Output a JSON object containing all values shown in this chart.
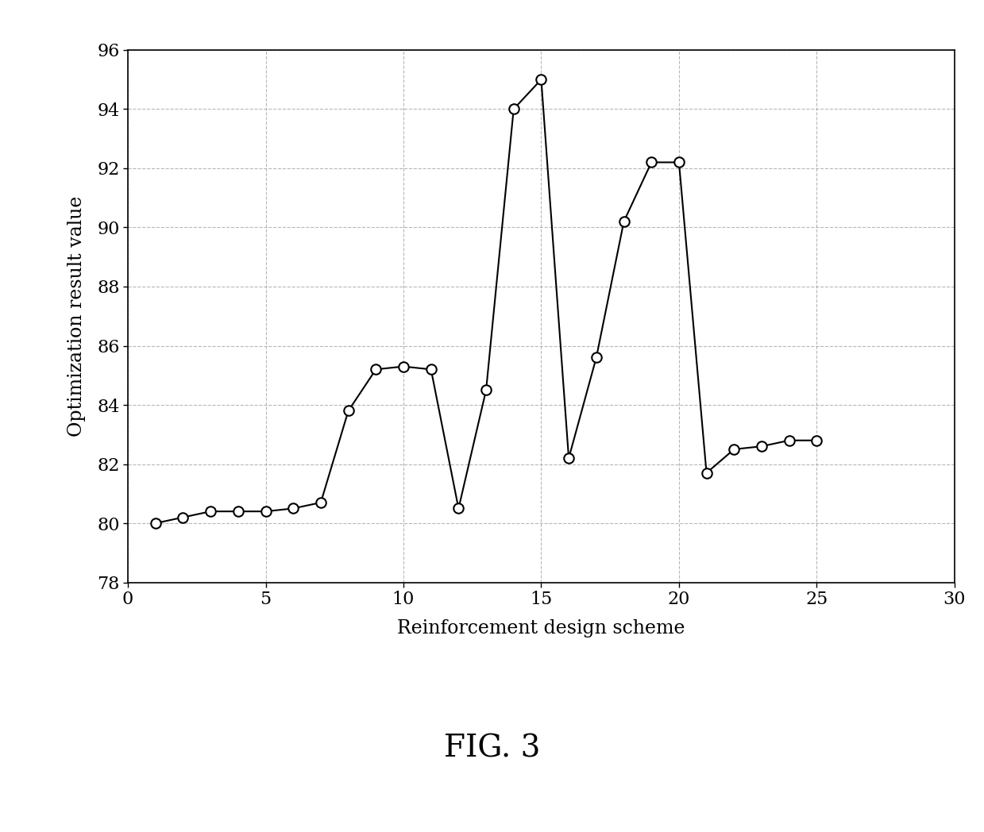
{
  "x": [
    1,
    2,
    3,
    4,
    5,
    6,
    7,
    8,
    9,
    10,
    11,
    12,
    13,
    14,
    15,
    16,
    17,
    18,
    19,
    20,
    21,
    22,
    23,
    24,
    25
  ],
  "y": [
    80.0,
    80.2,
    80.4,
    80.4,
    80.4,
    80.5,
    80.7,
    83.8,
    85.2,
    85.3,
    85.2,
    80.5,
    84.5,
    94.0,
    95.0,
    82.2,
    85.6,
    90.2,
    92.2,
    92.2,
    81.7,
    82.5,
    82.6,
    82.8,
    82.8
  ],
  "xlabel": "Reinforcement design scheme",
  "ylabel": "Optimization result value",
  "xlim": [
    0,
    30
  ],
  "ylim": [
    78,
    96
  ],
  "xticks": [
    0,
    5,
    10,
    15,
    20,
    25,
    30
  ],
  "yticks": [
    78,
    80,
    82,
    84,
    86,
    88,
    90,
    92,
    94,
    96
  ],
  "fig_caption": "FIG. 3",
  "line_color": "#000000",
  "marker_facecolor": "#ffffff",
  "marker_edge_color": "#000000",
  "marker_size": 9,
  "line_width": 1.5,
  "grid_color": "#999999",
  "grid_style": "--",
  "background_color": "#ffffff",
  "caption_fontsize": 28,
  "tick_fontsize": 16,
  "label_fontsize": 17
}
